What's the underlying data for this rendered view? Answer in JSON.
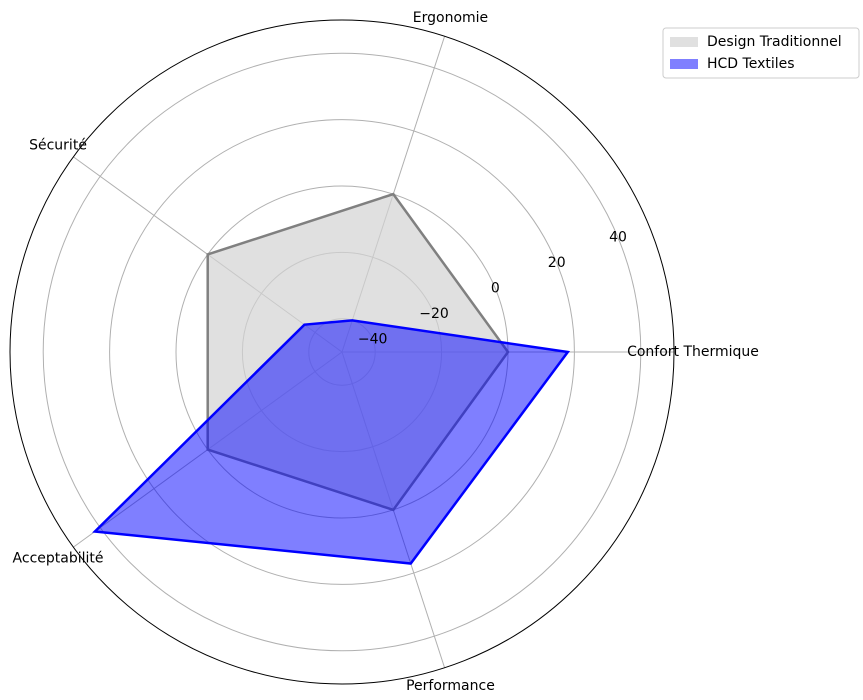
{
  "chart_data": {
    "type": "radar",
    "categories": [
      "Confort Thermique",
      "Ergonomie",
      "Sécurité",
      "Acceptabilité",
      "Performance"
    ],
    "series": [
      {
        "name": "Design Traditionnel",
        "color": "#808080",
        "fill": "#d3d3d3",
        "values": [
          0,
          0,
          0,
          0,
          0
        ]
      },
      {
        "name": "HCD Textiles",
        "color": "#0000ff",
        "fill": "#0000ff",
        "values": [
          18,
          -40,
          -36,
          42,
          17
        ]
      }
    ],
    "ylim": [
      -50,
      50
    ],
    "yticks": [
      {
        "value": -40,
        "label": "−40"
      },
      {
        "value": -20,
        "label": "−20"
      },
      0,
      20,
      40
    ],
    "grid": true,
    "legend": "upper right"
  }
}
